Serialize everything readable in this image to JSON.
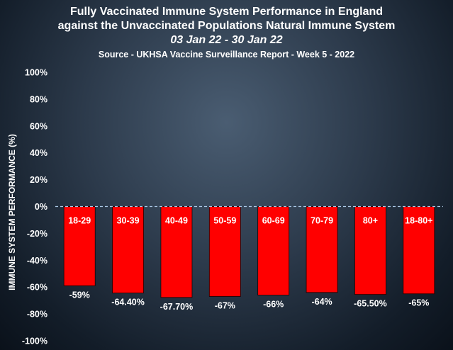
{
  "chart_data": {
    "type": "bar",
    "title": "Fully Vaccinated Immune System Performance in England",
    "title_line2": "against the Unvaccinated Populations Natural Immune System",
    "subtitle": "03 Jan 22 - 30 Jan 22",
    "source": "Source - UKHSA Vaccine Surveillance Report - Week 5 - 2022",
    "ylabel": "IMMUNE SYSTEM PERFORMANCE  (%)",
    "xlabel": "",
    "categories": [
      "18-29",
      "30-39",
      "40-49",
      "50-59",
      "60-69",
      "70-79",
      "80+",
      "18-80+"
    ],
    "values": [
      -59,
      -64.4,
      -67.7,
      -67,
      -66,
      -64,
      -65.5,
      -65
    ],
    "value_labels": [
      "-59%",
      "-64.40%",
      "-67.70%",
      "-67%",
      "-66%",
      "-64%",
      "-65.50%",
      "-65%"
    ],
    "yticks": [
      100,
      80,
      60,
      40,
      20,
      0,
      -20,
      -40,
      -60,
      -80,
      -100
    ],
    "ytick_labels": [
      "100%",
      "80%",
      "60%",
      "40%",
      "20%",
      "0%",
      "-20%",
      "-40%",
      "-60%",
      "-80%",
      "-100%"
    ],
    "ylim": [
      -100,
      100
    ],
    "grid": false,
    "zero_line": "dashed",
    "legend": "none",
    "colors": {
      "bar": "#ff0000",
      "zero_line": "#aac8e6",
      "text": "#ffffff"
    }
  }
}
